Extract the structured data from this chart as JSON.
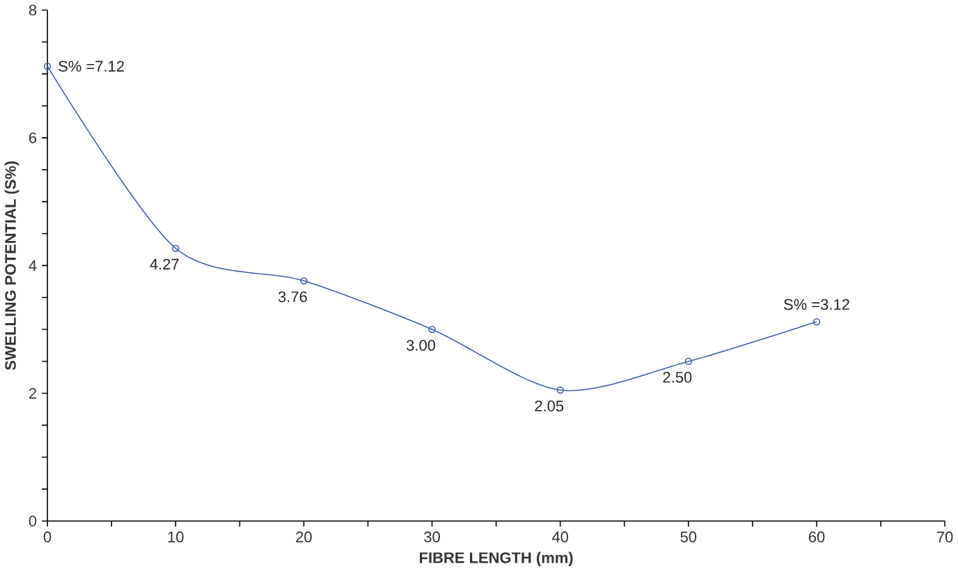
{
  "chart_data": {
    "type": "line",
    "xlabel": "FIBRE LENGTH  (mm)",
    "ylabel": "SWELLING POTENTIAL  (S%)",
    "x": [
      0,
      10,
      20,
      30,
      40,
      50,
      60
    ],
    "series": [
      {
        "color": "#3f5f9f",
        "values": [
          7.12,
          4.27,
          3.76,
          3.0,
          2.05,
          2.5,
          3.12
        ],
        "value_labels": [
          "S% =7.12",
          "4.27",
          "3.76",
          "3.00",
          "2.05",
          "2.50",
          "S% =3.12"
        ]
      }
    ],
    "xlim": [
      0,
      70
    ],
    "xticks": [
      0,
      {
        "value": 5,
        "label": null
      },
      10,
      {
        "value": 15,
        "label": null
      },
      20,
      {
        "value": 25,
        "label": null
      },
      30,
      {
        "value": 35,
        "label": null
      },
      40,
      {
        "value": 45,
        "label": null
      },
      50,
      {
        "value": 55,
        "label": null
      },
      60,
      {
        "value": 65,
        "label": null
      },
      70
    ],
    "ylim": [
      0,
      8
    ],
    "yticks": [
      0,
      {
        "value": 0.5,
        "label": null
      },
      {
        "value": 1,
        "label": null
      },
      {
        "value": 1.5,
        "label": null
      },
      2,
      {
        "value": 2.5,
        "label": null
      },
      {
        "value": 3,
        "label": null
      },
      {
        "value": 3.5,
        "label": null
      },
      4,
      {
        "value": 4.5,
        "label": null
      },
      {
        "value": 5,
        "label": null
      },
      {
        "value": 5.5,
        "label": null
      },
      6,
      {
        "value": 6.5,
        "label": null
      },
      {
        "value": 7,
        "label": null
      },
      {
        "value": 7.5,
        "label": null
      },
      8
    ],
    "grid": false,
    "marker": "circle",
    "line_style": "solid"
  }
}
